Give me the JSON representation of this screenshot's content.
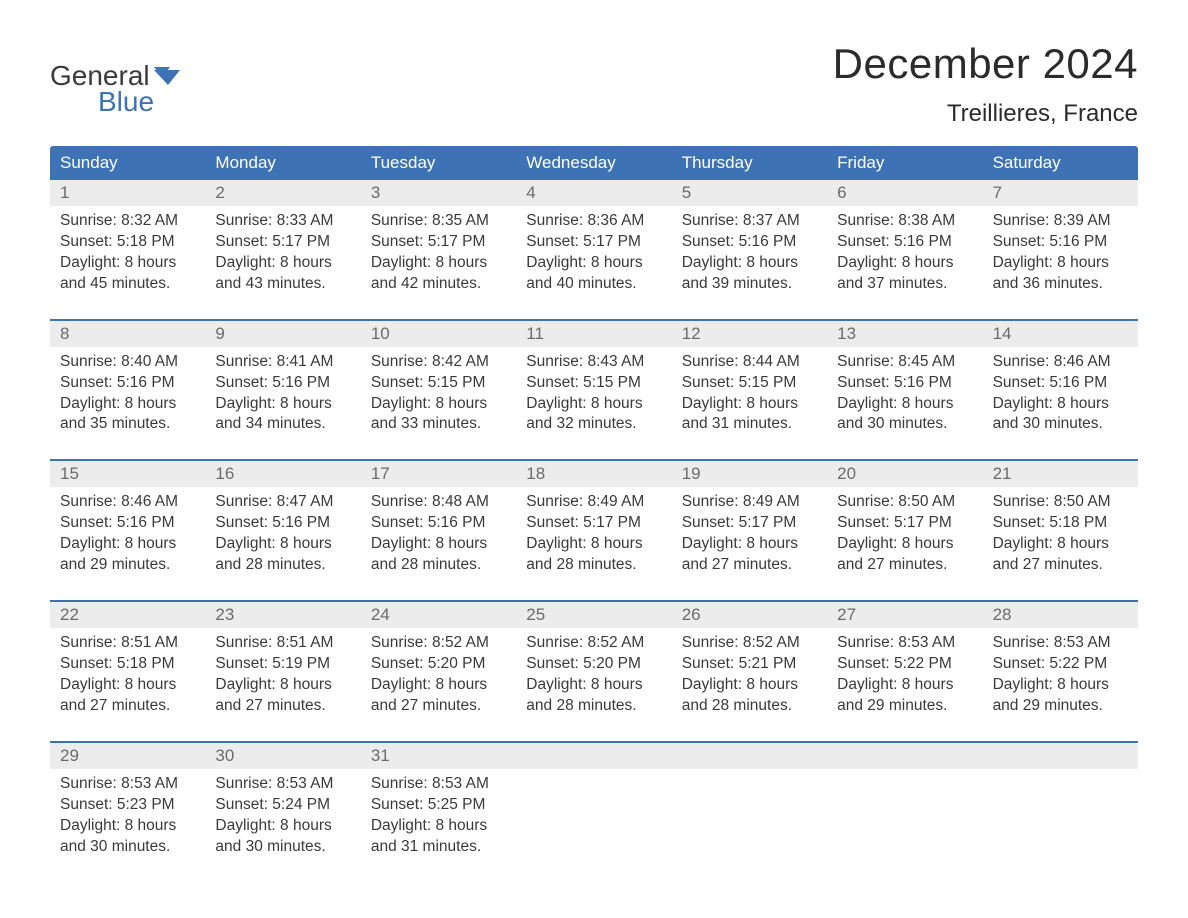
{
  "brand": {
    "general": "General",
    "blue": "Blue"
  },
  "title": "December 2024",
  "location": "Treillieres, France",
  "colors": {
    "header_bg": "#3d72b4",
    "header_text": "#ffffff",
    "daynum_bg": "#ececec",
    "daynum_text": "#6b6b6b",
    "body_text": "#3a3a3a",
    "week_divider": "#3d72b4",
    "logo_blue": "#3d72b4",
    "background": "#ffffff"
  },
  "typography": {
    "title_fontsize": 42,
    "subtitle_fontsize": 24,
    "dow_fontsize": 17,
    "daynum_fontsize": 17,
    "detail_fontsize": 15.5,
    "font_family": "Arial"
  },
  "layout": {
    "columns": 7,
    "weeks": 5
  },
  "days_of_week": [
    "Sunday",
    "Monday",
    "Tuesday",
    "Wednesday",
    "Thursday",
    "Friday",
    "Saturday"
  ],
  "weeks": [
    [
      {
        "num": "1",
        "sunrise": "Sunrise: 8:32 AM",
        "sunset": "Sunset: 5:18 PM",
        "dl1": "Daylight: 8 hours",
        "dl2": "and 45 minutes."
      },
      {
        "num": "2",
        "sunrise": "Sunrise: 8:33 AM",
        "sunset": "Sunset: 5:17 PM",
        "dl1": "Daylight: 8 hours",
        "dl2": "and 43 minutes."
      },
      {
        "num": "3",
        "sunrise": "Sunrise: 8:35 AM",
        "sunset": "Sunset: 5:17 PM",
        "dl1": "Daylight: 8 hours",
        "dl2": "and 42 minutes."
      },
      {
        "num": "4",
        "sunrise": "Sunrise: 8:36 AM",
        "sunset": "Sunset: 5:17 PM",
        "dl1": "Daylight: 8 hours",
        "dl2": "and 40 minutes."
      },
      {
        "num": "5",
        "sunrise": "Sunrise: 8:37 AM",
        "sunset": "Sunset: 5:16 PM",
        "dl1": "Daylight: 8 hours",
        "dl2": "and 39 minutes."
      },
      {
        "num": "6",
        "sunrise": "Sunrise: 8:38 AM",
        "sunset": "Sunset: 5:16 PM",
        "dl1": "Daylight: 8 hours",
        "dl2": "and 37 minutes."
      },
      {
        "num": "7",
        "sunrise": "Sunrise: 8:39 AM",
        "sunset": "Sunset: 5:16 PM",
        "dl1": "Daylight: 8 hours",
        "dl2": "and 36 minutes."
      }
    ],
    [
      {
        "num": "8",
        "sunrise": "Sunrise: 8:40 AM",
        "sunset": "Sunset: 5:16 PM",
        "dl1": "Daylight: 8 hours",
        "dl2": "and 35 minutes."
      },
      {
        "num": "9",
        "sunrise": "Sunrise: 8:41 AM",
        "sunset": "Sunset: 5:16 PM",
        "dl1": "Daylight: 8 hours",
        "dl2": "and 34 minutes."
      },
      {
        "num": "10",
        "sunrise": "Sunrise: 8:42 AM",
        "sunset": "Sunset: 5:15 PM",
        "dl1": "Daylight: 8 hours",
        "dl2": "and 33 minutes."
      },
      {
        "num": "11",
        "sunrise": "Sunrise: 8:43 AM",
        "sunset": "Sunset: 5:15 PM",
        "dl1": "Daylight: 8 hours",
        "dl2": "and 32 minutes."
      },
      {
        "num": "12",
        "sunrise": "Sunrise: 8:44 AM",
        "sunset": "Sunset: 5:15 PM",
        "dl1": "Daylight: 8 hours",
        "dl2": "and 31 minutes."
      },
      {
        "num": "13",
        "sunrise": "Sunrise: 8:45 AM",
        "sunset": "Sunset: 5:16 PM",
        "dl1": "Daylight: 8 hours",
        "dl2": "and 30 minutes."
      },
      {
        "num": "14",
        "sunrise": "Sunrise: 8:46 AM",
        "sunset": "Sunset: 5:16 PM",
        "dl1": "Daylight: 8 hours",
        "dl2": "and 30 minutes."
      }
    ],
    [
      {
        "num": "15",
        "sunrise": "Sunrise: 8:46 AM",
        "sunset": "Sunset: 5:16 PM",
        "dl1": "Daylight: 8 hours",
        "dl2": "and 29 minutes."
      },
      {
        "num": "16",
        "sunrise": "Sunrise: 8:47 AM",
        "sunset": "Sunset: 5:16 PM",
        "dl1": "Daylight: 8 hours",
        "dl2": "and 28 minutes."
      },
      {
        "num": "17",
        "sunrise": "Sunrise: 8:48 AM",
        "sunset": "Sunset: 5:16 PM",
        "dl1": "Daylight: 8 hours",
        "dl2": "and 28 minutes."
      },
      {
        "num": "18",
        "sunrise": "Sunrise: 8:49 AM",
        "sunset": "Sunset: 5:17 PM",
        "dl1": "Daylight: 8 hours",
        "dl2": "and 28 minutes."
      },
      {
        "num": "19",
        "sunrise": "Sunrise: 8:49 AM",
        "sunset": "Sunset: 5:17 PM",
        "dl1": "Daylight: 8 hours",
        "dl2": "and 27 minutes."
      },
      {
        "num": "20",
        "sunrise": "Sunrise: 8:50 AM",
        "sunset": "Sunset: 5:17 PM",
        "dl1": "Daylight: 8 hours",
        "dl2": "and 27 minutes."
      },
      {
        "num": "21",
        "sunrise": "Sunrise: 8:50 AM",
        "sunset": "Sunset: 5:18 PM",
        "dl1": "Daylight: 8 hours",
        "dl2": "and 27 minutes."
      }
    ],
    [
      {
        "num": "22",
        "sunrise": "Sunrise: 8:51 AM",
        "sunset": "Sunset: 5:18 PM",
        "dl1": "Daylight: 8 hours",
        "dl2": "and 27 minutes."
      },
      {
        "num": "23",
        "sunrise": "Sunrise: 8:51 AM",
        "sunset": "Sunset: 5:19 PM",
        "dl1": "Daylight: 8 hours",
        "dl2": "and 27 minutes."
      },
      {
        "num": "24",
        "sunrise": "Sunrise: 8:52 AM",
        "sunset": "Sunset: 5:20 PM",
        "dl1": "Daylight: 8 hours",
        "dl2": "and 27 minutes."
      },
      {
        "num": "25",
        "sunrise": "Sunrise: 8:52 AM",
        "sunset": "Sunset: 5:20 PM",
        "dl1": "Daylight: 8 hours",
        "dl2": "and 28 minutes."
      },
      {
        "num": "26",
        "sunrise": "Sunrise: 8:52 AM",
        "sunset": "Sunset: 5:21 PM",
        "dl1": "Daylight: 8 hours",
        "dl2": "and 28 minutes."
      },
      {
        "num": "27",
        "sunrise": "Sunrise: 8:53 AM",
        "sunset": "Sunset: 5:22 PM",
        "dl1": "Daylight: 8 hours",
        "dl2": "and 29 minutes."
      },
      {
        "num": "28",
        "sunrise": "Sunrise: 8:53 AM",
        "sunset": "Sunset: 5:22 PM",
        "dl1": "Daylight: 8 hours",
        "dl2": "and 29 minutes."
      }
    ],
    [
      {
        "num": "29",
        "sunrise": "Sunrise: 8:53 AM",
        "sunset": "Sunset: 5:23 PM",
        "dl1": "Daylight: 8 hours",
        "dl2": "and 30 minutes."
      },
      {
        "num": "30",
        "sunrise": "Sunrise: 8:53 AM",
        "sunset": "Sunset: 5:24 PM",
        "dl1": "Daylight: 8 hours",
        "dl2": "and 30 minutes."
      },
      {
        "num": "31",
        "sunrise": "Sunrise: 8:53 AM",
        "sunset": "Sunset: 5:25 PM",
        "dl1": "Daylight: 8 hours",
        "dl2": "and 31 minutes."
      },
      null,
      null,
      null,
      null
    ]
  ]
}
